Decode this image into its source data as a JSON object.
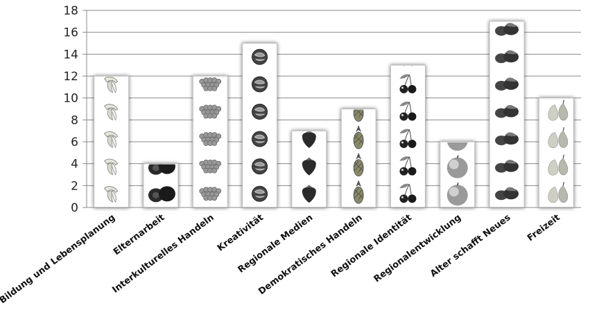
{
  "chart_data": {
    "type": "bar",
    "title": "",
    "xlabel": "",
    "ylabel": "",
    "ylim": [
      0,
      18
    ],
    "yticks": [
      0,
      2,
      4,
      6,
      8,
      10,
      12,
      14,
      16,
      18
    ],
    "grid": true,
    "categories": [
      "Bildung und Lebensplanung",
      "Elternarbeit",
      "Interkulturelles Handeln",
      "Kreativität",
      "Regionale Medien",
      "Demokratisches Handeln",
      "Regionale Identität",
      "Regionalentwicklung",
      "Alter schafft Neues",
      "Freizeit"
    ],
    "values": [
      12,
      4,
      12,
      15,
      7,
      9,
      13,
      6,
      17,
      10
    ],
    "bar_fill_icons": [
      "banana-icon",
      "kiwi-icon",
      "grapes-icon",
      "walnut-icon",
      "strawberry-icon",
      "pineapple-icon",
      "cherries-icon",
      "apple-icon",
      "figs-icon",
      "pear-icon"
    ],
    "colors": {
      "axis": "#888888",
      "grid": "#888888",
      "bar_background": "#ffffff",
      "bar_shadow": "#bdbdbd"
    }
  }
}
